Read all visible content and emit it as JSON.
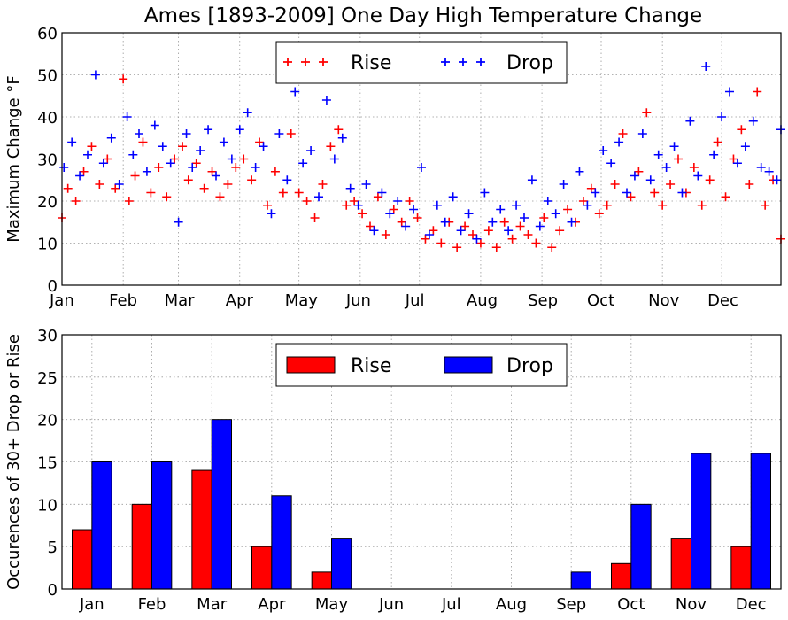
{
  "figure": {
    "title": "Ames [1893-2009] One Day High Temperature Change"
  },
  "chart_data": [
    {
      "type": "scatter",
      "title": "Ames [1893-2009] One Day High Temperature Change",
      "ylabel": "Maximum Change °F",
      "xlabel": "",
      "xlim": [
        "Jan 1",
        "Dec 31"
      ],
      "ylim": [
        0,
        60
      ],
      "yticks": [
        0,
        10,
        20,
        30,
        40,
        50,
        60
      ],
      "xticks": [
        "Jan",
        "Feb",
        "Mar",
        "Apr",
        "May",
        "Jun",
        "Jul",
        "Aug",
        "Sep",
        "Oct",
        "Nov",
        "Dec"
      ],
      "grid": true,
      "legend_position": "top-center",
      "marker": "+",
      "series": [
        {
          "name": "Rise",
          "color": "#ff0000",
          "x": [
            "Jan 1",
            "Jan 4",
            "Jan 8",
            "Jan 12",
            "Jan 16",
            "Jan 20",
            "Jan 24",
            "Jan 28",
            "Feb 1",
            "Feb 4",
            "Feb 7",
            "Feb 11",
            "Feb 15",
            "Feb 19",
            "Feb 23",
            "Feb 27",
            "Mar 3",
            "Mar 6",
            "Mar 10",
            "Mar 14",
            "Mar 18",
            "Mar 22",
            "Mar 26",
            "Mar 30",
            "Apr 3",
            "Apr 7",
            "Apr 11",
            "Apr 15",
            "Apr 19",
            "Apr 23",
            "Apr 27",
            "May 1",
            "May 5",
            "May 9",
            "May 13",
            "May 17",
            "May 21",
            "May 25",
            "May 29",
            "Jun 2",
            "Jun 6",
            "Jun 10",
            "Jun 14",
            "Jun 18",
            "Jun 22",
            "Jun 26",
            "Jun 30",
            "Jul 4",
            "Jul 8",
            "Jul 12",
            "Jul 16",
            "Jul 20",
            "Jul 24",
            "Jul 28",
            "Aug 1",
            "Aug 5",
            "Aug 9",
            "Aug 13",
            "Aug 17",
            "Aug 21",
            "Aug 25",
            "Aug 29",
            "Sep 2",
            "Sep 6",
            "Sep 10",
            "Sep 14",
            "Sep 18",
            "Sep 22",
            "Sep 26",
            "Sep 30",
            "Oct 4",
            "Oct 8",
            "Oct 12",
            "Oct 16",
            "Oct 20",
            "Oct 24",
            "Oct 28",
            "Nov 1",
            "Nov 5",
            "Nov 9",
            "Nov 13",
            "Nov 17",
            "Nov 21",
            "Nov 25",
            "Nov 29",
            "Dec 3",
            "Dec 7",
            "Dec 11",
            "Dec 15",
            "Dec 19",
            "Dec 23",
            "Dec 27",
            "Dec 31"
          ],
          "y": [
            16,
            23,
            20,
            27,
            33,
            24,
            30,
            23,
            49,
            20,
            26,
            34,
            22,
            28,
            21,
            30,
            33,
            25,
            29,
            23,
            27,
            21,
            24,
            28,
            30,
            25,
            34,
            19,
            27,
            22,
            36,
            22,
            20,
            16,
            24,
            33,
            37,
            19,
            20,
            17,
            14,
            21,
            12,
            18,
            15,
            20,
            16,
            11,
            13,
            10,
            15,
            9,
            14,
            12,
            10,
            13,
            9,
            15,
            11,
            14,
            12,
            10,
            16,
            9,
            13,
            18,
            15,
            20,
            23,
            17,
            19,
            24,
            36,
            21,
            27,
            41,
            22,
            19,
            24,
            30,
            22,
            28,
            19,
            25,
            34,
            21,
            30,
            37,
            24,
            46,
            19,
            25,
            11
          ]
        },
        {
          "name": "Drop",
          "color": "#0000ff",
          "x": [
            "Jan 2",
            "Jan 6",
            "Jan 10",
            "Jan 14",
            "Jan 18",
            "Jan 22",
            "Jan 26",
            "Jan 30",
            "Feb 3",
            "Feb 6",
            "Feb 9",
            "Feb 13",
            "Feb 17",
            "Feb 21",
            "Feb 25",
            "Mar 1",
            "Mar 5",
            "Mar 8",
            "Mar 12",
            "Mar 16",
            "Mar 20",
            "Mar 24",
            "Mar 28",
            "Apr 1",
            "Apr 5",
            "Apr 9",
            "Apr 13",
            "Apr 17",
            "Apr 21",
            "Apr 25",
            "Apr 29",
            "May 3",
            "May 7",
            "May 11",
            "May 15",
            "May 19",
            "May 23",
            "May 27",
            "May 31",
            "Jun 4",
            "Jun 8",
            "Jun 12",
            "Jun 16",
            "Jun 20",
            "Jun 24",
            "Jun 28",
            "Jul 2",
            "Jul 6",
            "Jul 10",
            "Jul 14",
            "Jul 18",
            "Jul 22",
            "Jul 26",
            "Jul 30",
            "Aug 3",
            "Aug 7",
            "Aug 11",
            "Aug 15",
            "Aug 19",
            "Aug 23",
            "Aug 27",
            "Aug 31",
            "Sep 4",
            "Sep 8",
            "Sep 12",
            "Sep 16",
            "Sep 20",
            "Sep 24",
            "Sep 28",
            "Oct 2",
            "Oct 6",
            "Oct 10",
            "Oct 14",
            "Oct 18",
            "Oct 22",
            "Oct 26",
            "Oct 30",
            "Nov 3",
            "Nov 7",
            "Nov 11",
            "Nov 15",
            "Nov 19",
            "Nov 23",
            "Nov 27",
            "Dec 1",
            "Dec 5",
            "Dec 9",
            "Dec 13",
            "Dec 17",
            "Dec 21",
            "Dec 25",
            "Dec 29",
            "Dec 31"
          ],
          "y": [
            28,
            34,
            26,
            31,
            50,
            29,
            35,
            24,
            40,
            31,
            36,
            27,
            38,
            33,
            29,
            15,
            36,
            28,
            32,
            37,
            26,
            34,
            30,
            37,
            41,
            28,
            33,
            17,
            36,
            25,
            46,
            29,
            32,
            21,
            44,
            30,
            35,
            23,
            19,
            24,
            13,
            22,
            17,
            20,
            14,
            18,
            28,
            12,
            19,
            15,
            21,
            13,
            17,
            11,
            22,
            15,
            18,
            13,
            19,
            16,
            25,
            14,
            20,
            17,
            24,
            15,
            27,
            19,
            22,
            32,
            29,
            34,
            22,
            26,
            36,
            25,
            31,
            28,
            33,
            22,
            39,
            26,
            52,
            31,
            40,
            46,
            29,
            33,
            39,
            28,
            27,
            25,
            37
          ]
        }
      ]
    },
    {
      "type": "bar",
      "title": "",
      "xlabel": "",
      "ylabel": "Occurences of 30+ Drop or Rise",
      "categories": [
        "Jan",
        "Feb",
        "Mar",
        "Apr",
        "May",
        "Jun",
        "Jul",
        "Aug",
        "Sep",
        "Oct",
        "Nov",
        "Dec"
      ],
      "ylim": [
        0,
        30
      ],
      "yticks": [
        0,
        5,
        10,
        15,
        20,
        25,
        30
      ],
      "grid": true,
      "legend_position": "top-center",
      "series": [
        {
          "name": "Rise",
          "color": "#ff0000",
          "values": [
            7,
            10,
            14,
            5,
            2,
            0,
            0,
            0,
            0,
            3,
            6,
            5
          ]
        },
        {
          "name": "Drop",
          "color": "#0000ff",
          "values": [
            15,
            15,
            20,
            11,
            6,
            0,
            0,
            0,
            2,
            10,
            16,
            16
          ]
        }
      ]
    }
  ]
}
